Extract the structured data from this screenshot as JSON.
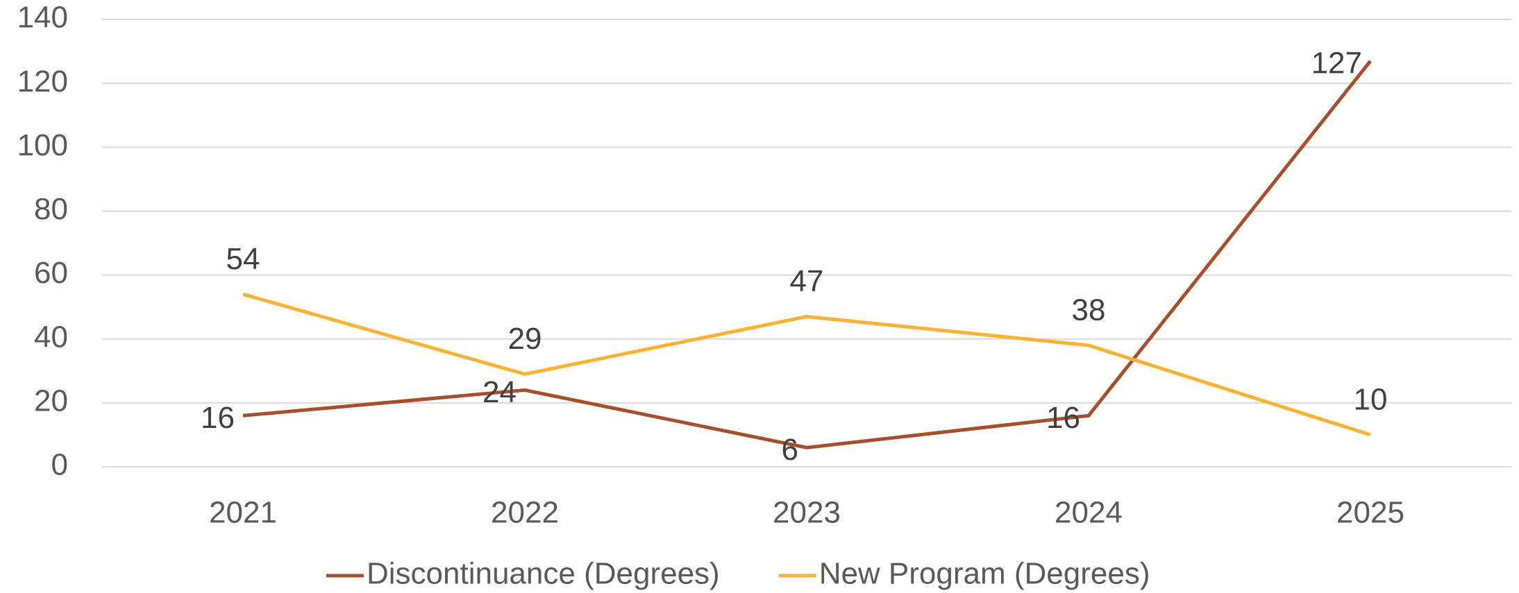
{
  "chart_data": {
    "type": "line",
    "categories": [
      "2021",
      "2022",
      "2023",
      "2024",
      "2025"
    ],
    "series": [
      {
        "name": "Discontinuance (Degrees)",
        "color": "#a5502b",
        "values": [
          16,
          24,
          6,
          16,
          127
        ]
      },
      {
        "name": "New Program (Degrees)",
        "color": "#f9b233",
        "values": [
          54,
          29,
          47,
          38,
          10
        ]
      }
    ],
    "ylim": [
      0,
      140
    ],
    "yticks": [
      0,
      20,
      40,
      60,
      80,
      100,
      120,
      140
    ],
    "grid": true,
    "legend": "bottom"
  }
}
